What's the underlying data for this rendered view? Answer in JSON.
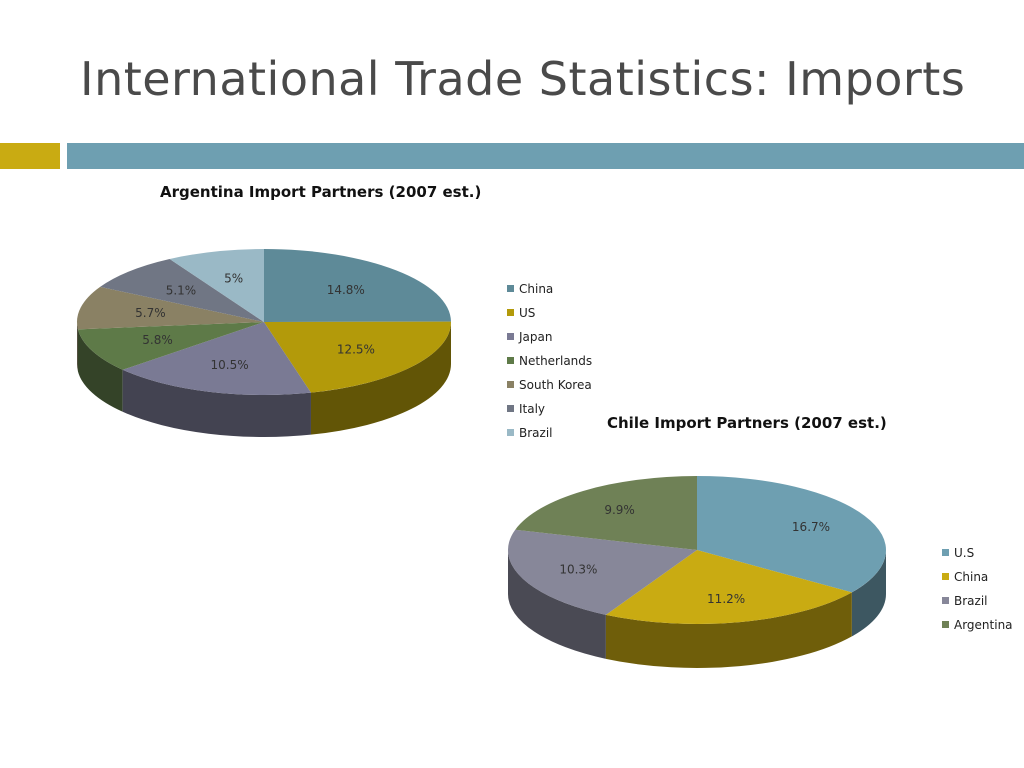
{
  "slide": {
    "title": "International Trade Statistics: Imports",
    "accent_colors": {
      "gold": "#c9ab12",
      "steel": "#6e9fb1"
    }
  },
  "chart_data": [
    {
      "type": "pie",
      "title": "Argentina Import Partners (2007 est.)",
      "categories": [
        "China",
        "US",
        "Japan",
        "Netherlands",
        "South Korea",
        "Italy",
        "Brazil"
      ],
      "values": [
        14.8,
        12.5,
        10.5,
        5.8,
        5.7,
        5.1,
        5
      ],
      "labels": [
        "14.8%",
        "12.5%",
        "10.5%",
        "5.8%",
        "5.7%",
        "5.1%",
        "5%"
      ],
      "colors": [
        "#5e8a98",
        "#b39a0a",
        "#7a7a94",
        "#5e7a48",
        "#8a8164",
        "#707684",
        "#9ab9c6"
      ],
      "style": "3d",
      "legend": "right"
    },
    {
      "type": "pie",
      "title": "Chile Import Partners (2007 est.)",
      "categories": [
        "U.S",
        "China",
        "Brazil",
        "Argentina"
      ],
      "values": [
        16.7,
        11.2,
        10.3,
        9.9
      ],
      "labels": [
        "16.7%",
        "11.2%",
        "10.3%",
        "9.9%"
      ],
      "colors": [
        "#6e9fb1",
        "#c9ab12",
        "#878799",
        "#6f8156"
      ],
      "style": "3d",
      "legend": "right"
    }
  ]
}
